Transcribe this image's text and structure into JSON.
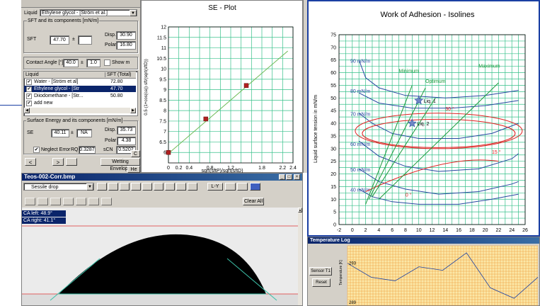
{
  "control_panel": {
    "liquid_label": "Liquid",
    "liquid_value": "Ethylene glycol - [Ström et al.]",
    "sft_group": "SFT and its components [mN/m]",
    "sft_label": "SFT",
    "sft_value": "47.70",
    "sft_pm": "±",
    "disp_label": "Disp.",
    "disp_value": "30.90",
    "polar_label": "Polar",
    "polar_value": "16.80",
    "contact_angle_label": "Contact Angle [°]",
    "ca_value": "40.0",
    "ca_pm": "±",
    "ca_err": "1.0",
    "show_label": "Show m",
    "table_header_liquid": "Liquid",
    "table_header_sft": "SFT (Total)",
    "rows": [
      {
        "checked": "✔",
        "name": "Water - [Ström et al]",
        "sft": "72.80",
        "selected": false
      },
      {
        "checked": "✔",
        "name": "Ethylene glycol - [Str",
        "sft": "47.70",
        "selected": true
      },
      {
        "checked": "✔",
        "name": "Diiodomethane - [Str...",
        "sft": "50.80",
        "selected": false
      },
      {
        "checked": "✔",
        "name": "add new",
        "sft": "",
        "selected": false
      }
    ],
    "se_group": "Surface Energy and its components [mN/m]",
    "se_label": "SE",
    "se_value": "40.11",
    "se_pm": "±",
    "se_err": "NA",
    "se_disp_label": "Disp.",
    "se_disp_value": "35.73",
    "se_polar_label": "Polar",
    "se_polar_value": "4.38",
    "neglect_label": "Neglect Error",
    "rq_label": "RQ",
    "rq_value": "0.3287",
    "sigma_label": "sCN",
    "sigma_value": "0.5202",
    "nav_prev": "<",
    "nav_next": ">",
    "wetting_envelope": "Wetting Envelope",
    "btn_c": "C",
    "btn_he": "He"
  },
  "se_plot": {
    "title": "SE - Plot",
    "xlabel": "sqrt(sftP)/sqrt(sftD)",
    "ylabel": "0.5·(1+cos(ca))·sft/(sqrt(sftD))"
  },
  "drop_window": {
    "title": "Teos-002-Corr.bmp",
    "mode": "Sessile drop",
    "ly_label": "L-Y",
    "clear_all": "Clear All",
    "ca_left": "CA left:  48.9°",
    "ca_right": "CA right: 41.1°"
  },
  "isolines": {
    "title": "Work of Adhesion - Isolines",
    "ylabel": "Liquid surface tension in mN/m",
    "iso_labels": [
      "90 mN/m",
      "80 mN/m",
      "70 mN/m",
      "60 mN/m",
      "50 mN/m",
      "40 mN/m"
    ],
    "annotations": {
      "minimum": "Minimum",
      "optimum": "Optimum",
      "maximum": "Maximum",
      "liq1": "Liq. 1",
      "liq2": "Liq. 2",
      "a30": "30 °",
      "a15": "15 °",
      "a0": "0 °"
    }
  },
  "temp_log": {
    "title": "Temperature Log",
    "sensor_button": "Sensor T1",
    "reset_button": "Reset",
    "ylabel": "Temperature [K]",
    "y_tick": "293",
    "y_tick_low": "289"
  },
  "chart_data": [
    {
      "type": "scatter",
      "title": "SE - Plot",
      "xlabel": "sqrt(sftP)/sqrt(sftD)",
      "ylabel": "0.5·(1+cos(ca))·sft/(sqrt(sftD))",
      "xlim": [
        0,
        2.4
      ],
      "ylim": [
        5.5,
        12
      ],
      "xticks": [
        "0",
        "0.2",
        "0.4",
        "0.8",
        "1.2",
        "1.8",
        "2.2",
        "2.4"
      ],
      "yticks": [
        "6",
        "6.5",
        "7",
        "7.5",
        "8",
        "8.5",
        "9",
        "9.5",
        "10",
        "10.5",
        "11",
        "11.5",
        "12"
      ],
      "points": [
        {
          "x": 0.0,
          "y": 6.0
        },
        {
          "x": 0.72,
          "y": 7.6
        },
        {
          "x": 1.5,
          "y": 9.2
        }
      ],
      "fit_line": {
        "x": [
          0,
          2.3
        ],
        "y": [
          5.95,
          10.85
        ]
      }
    },
    {
      "type": "line",
      "title": "Work of Adhesion - Isolines",
      "ylabel": "Liquid surface tension in mN/m",
      "xlim": [
        -2,
        26
      ],
      "ylim": [
        0,
        75
      ],
      "xticks": [
        "-2",
        "0",
        "2",
        "4",
        "6",
        "8",
        "10",
        "12",
        "14",
        "16",
        "18",
        "20",
        "22",
        "24",
        "26"
      ],
      "yticks": [
        "0",
        "5",
        "10",
        "15",
        "20",
        "25",
        "30",
        "35",
        "40",
        "45",
        "50",
        "55",
        "60",
        "65",
        "70",
        "75"
      ],
      "points": [
        {
          "name": "Liq. 1",
          "x": 10,
          "y": 49
        },
        {
          "name": "Liq. 2",
          "x": 9,
          "y": 40
        }
      ]
    },
    {
      "type": "line",
      "title": "Temperature Log",
      "ylabel": "Temperature [K]",
      "values": [
        293,
        289,
        288,
        292,
        291,
        296,
        286,
        283,
        289
      ]
    }
  ]
}
